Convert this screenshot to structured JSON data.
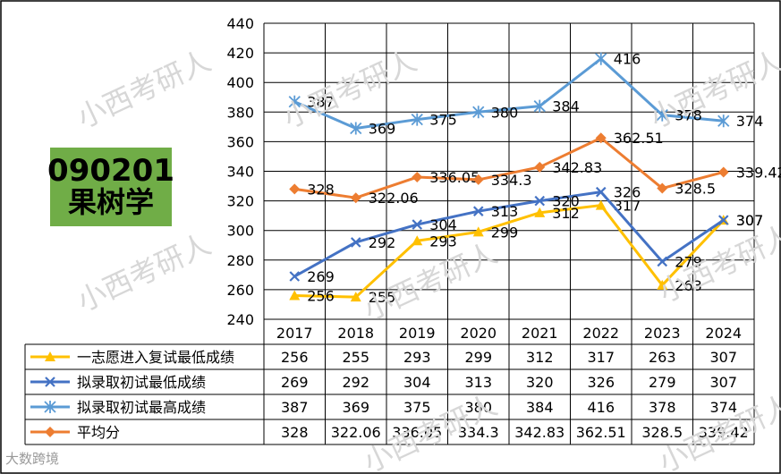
{
  "badge": {
    "code": "090201",
    "name": "果树学"
  },
  "watermark": "小西考研人",
  "footer_mark": "大数跨境",
  "chart_data": {
    "type": "line",
    "title": "",
    "xlabel": "",
    "ylabel": "",
    "categories": [
      "2017",
      "2018",
      "2019",
      "2020",
      "2021",
      "2022",
      "2023",
      "2024"
    ],
    "ylim": [
      240,
      440
    ],
    "yticks": [
      240,
      260,
      280,
      300,
      320,
      340,
      360,
      380,
      400,
      420,
      440
    ],
    "series": [
      {
        "name": "一志愿进入复试最低成绩",
        "color": "#ffc000",
        "marker": "triangle",
        "values": [
          256,
          255,
          293,
          299,
          312,
          317,
          263,
          307
        ],
        "labels": [
          "256",
          "255",
          "293",
          "299",
          "312",
          "317",
          "263",
          "307"
        ]
      },
      {
        "name": "拟录取初试最低成绩",
        "color": "#4472c4",
        "marker": "x",
        "values": [
          269,
          292,
          304,
          313,
          320,
          326,
          279,
          307
        ],
        "labels": [
          "269",
          "292",
          "304",
          "313",
          "320",
          "326",
          "279",
          "307"
        ]
      },
      {
        "name": "拟录取初试最高成绩",
        "color": "#5b9bd5",
        "marker": "star",
        "values": [
          387,
          369,
          375,
          380,
          384,
          416,
          378,
          374
        ],
        "labels": [
          "387",
          "369",
          "375",
          "380",
          "384",
          "416",
          "378",
          "374"
        ]
      },
      {
        "name": "平均分",
        "color": "#ed7d31",
        "marker": "diamond",
        "values": [
          328,
          322.06,
          336.05,
          334.3,
          342.83,
          362.51,
          328.5,
          339.42
        ],
        "labels": [
          "328",
          "322.06",
          "336.05",
          "334.3",
          "342.83",
          "362.51",
          "328.5",
          "339.42"
        ]
      }
    ]
  }
}
